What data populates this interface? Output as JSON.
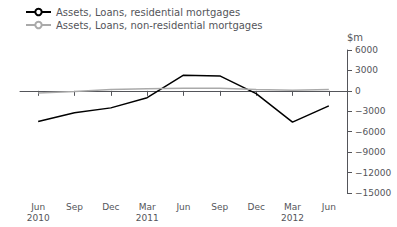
{
  "chart_data": {
    "type": "line",
    "ylabel": "$m",
    "categories": [
      "Jun\n2010",
      "Sep",
      "Dec",
      "Mar\n2011",
      "Jun",
      "Sep",
      "Dec",
      "Mar\n2012",
      "Jun"
    ],
    "series": [
      {
        "name": "Assets, Loans, residential mortgages",
        "color": "#000000",
        "values": [
          -4500,
          -3200,
          -2500,
          -1000,
          2300,
          2200,
          -400,
          -4600,
          -2200
        ]
      },
      {
        "name": "Assets, Loans, non-residential mortgages",
        "color": "#aaaaaa",
        "values": [
          -300,
          -100,
          200,
          300,
          400,
          400,
          200,
          100,
          200
        ]
      }
    ],
    "ylim": [
      -15000,
      6000
    ],
    "yticks": [
      {
        "value": -15000,
        "label": "−15000"
      },
      {
        "value": -12000,
        "label": "−12000"
      },
      {
        "value": -9000,
        "label": "−9000"
      },
      {
        "value": -6000,
        "label": "−6000"
      },
      {
        "value": -3000,
        "label": "−3000"
      },
      0,
      3000,
      6000
    ],
    "grid": false,
    "legend": "upper left"
  }
}
